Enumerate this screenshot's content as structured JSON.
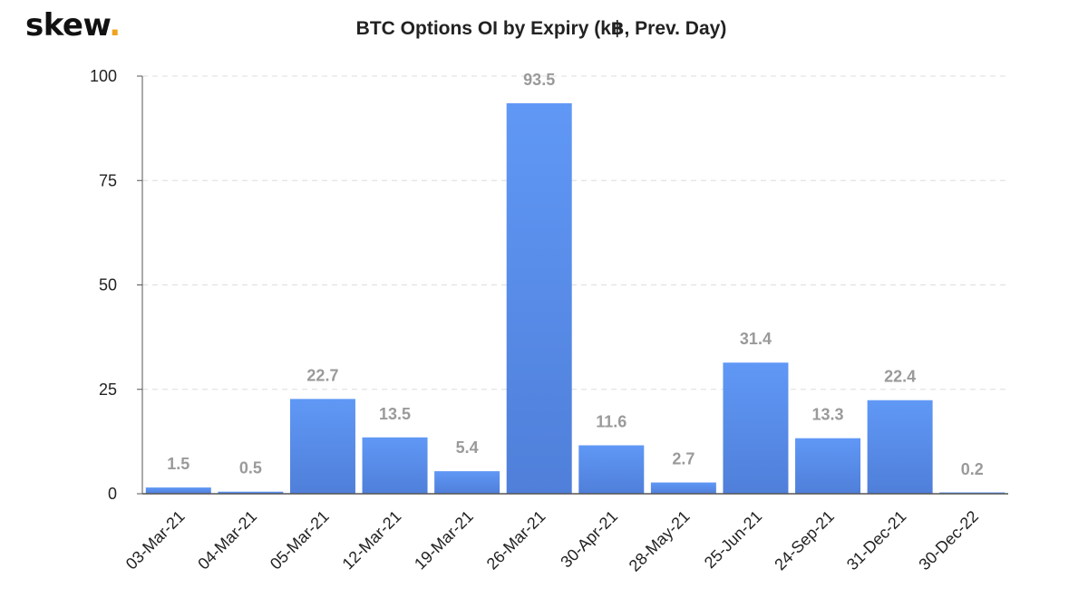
{
  "brand": {
    "name": "skew",
    "dot": "."
  },
  "colors": {
    "bar_top": "#6098f6",
    "bar_bottom": "#4f7fd9",
    "label": "#9a9a9a",
    "axis": "#555555",
    "grid": "#dddddd",
    "text": "#222222"
  },
  "chart_data": {
    "type": "bar",
    "title": "BTC Options OI by Expiry (k฿, Prev. Day)",
    "xlabel": "",
    "ylabel": "",
    "categories": [
      "03-Mar-21",
      "04-Mar-21",
      "05-Mar-21",
      "12-Mar-21",
      "19-Mar-21",
      "26-Mar-21",
      "30-Apr-21",
      "28-May-21",
      "25-Jun-21",
      "24-Sep-21",
      "31-Dec-21",
      "30-Dec-22"
    ],
    "values": [
      1.5,
      0.5,
      22.7,
      13.5,
      5.4,
      93.5,
      11.6,
      2.7,
      31.4,
      13.3,
      22.4,
      0.2
    ],
    "data_labels": [
      "1.5",
      "0.5",
      "22.7",
      "13.5",
      "5.4",
      "93.5",
      "11.6",
      "2.7",
      "31.4",
      "13.3",
      "22.4",
      "0.2"
    ],
    "ylim": [
      0,
      100
    ],
    "yticks": [
      0,
      25,
      50,
      75,
      100
    ],
    "grid": true,
    "legend": "none"
  }
}
